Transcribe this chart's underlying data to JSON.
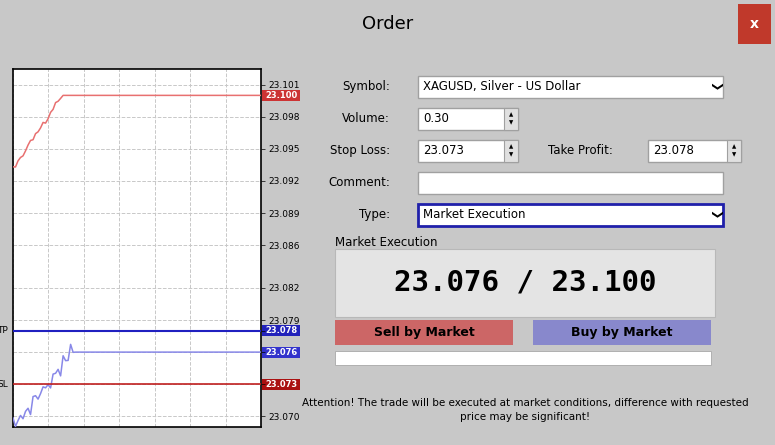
{
  "title": "Order",
  "bg_color": "#c8c8c8",
  "dialog_bg": "#e8e8e8",
  "titlebar_color": "#a0a0a0",
  "close_btn_color": "#c0392b",
  "chart_bg": "#ffffff",
  "chart_border": "#000000",
  "grid_color": "#c8c8c8",
  "price_min": 23.069,
  "price_max": 23.1025,
  "yticks_pos": [
    23.07,
    23.073,
    23.076,
    23.078,
    23.079,
    23.082,
    23.086,
    23.089,
    23.092,
    23.095,
    23.098,
    23.101
  ],
  "ytick_labels": [
    "23.070",
    "",
    "",
    "",
    "23.079",
    "23.082",
    "23.086",
    "23.089",
    "23.092",
    "23.095",
    "23.098",
    "23.101"
  ],
  "ask_price": 23.1,
  "bid_price": 23.076,
  "tp_price": 23.078,
  "sl_price": 23.073,
  "ask_color": "#e87070",
  "bid_color": "#8888e8",
  "tp_color": "#2020c0",
  "sl_color": "#c02020",
  "ask_label_bg": "#cc3333",
  "bid_label_bg": "#3333cc",
  "tp_label_bg": "#2222bb",
  "sl_label_bg": "#aa1111",
  "symbol": "XAGUSD, Silver - US Dollar",
  "volume": "0.30",
  "stop_loss": "23.073",
  "take_profit": "23.078",
  "comment": "",
  "type_val": "Market Execution",
  "price_display": "23.076 / 23.100",
  "sell_btn_color": "#cc6666",
  "buy_btn_color": "#8888cc",
  "sell_btn_text": "Sell by Market",
  "buy_btn_text": "Buy by Market",
  "attention_line1": "Attention! The trade will be executed at market conditions, difference with requested",
  "attention_line2": "price may be significant!",
  "type_border_color": "#2020aa",
  "field_border": "#a0a0a0"
}
